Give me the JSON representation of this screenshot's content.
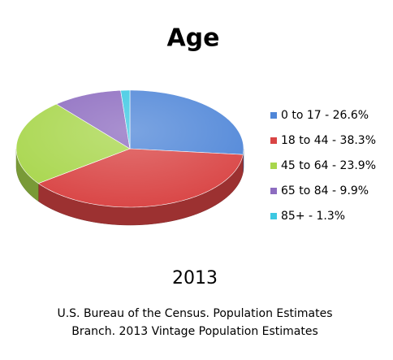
{
  "chart_data": {
    "type": "pie3d",
    "title": "Age",
    "subtitle": "2013",
    "categories": [
      "0 to 17 - 26.6%",
      "18 to 44 - 38.3%",
      "45 to 64 - 23.9%",
      "65 to 84 - 9.9%",
      "85+ - 1.3%"
    ],
    "values": [
      26.6,
      38.3,
      23.9,
      9.9,
      1.3
    ],
    "colors": [
      "#4f86d8",
      "#d94444",
      "#a8d64c",
      "#8d6cc0",
      "#3cc8e2"
    ],
    "legend": "right",
    "source": [
      "U.S. Bureau of the Census. Population Estimates",
      "Branch. 2013 Vintage Population Estimates"
    ]
  }
}
